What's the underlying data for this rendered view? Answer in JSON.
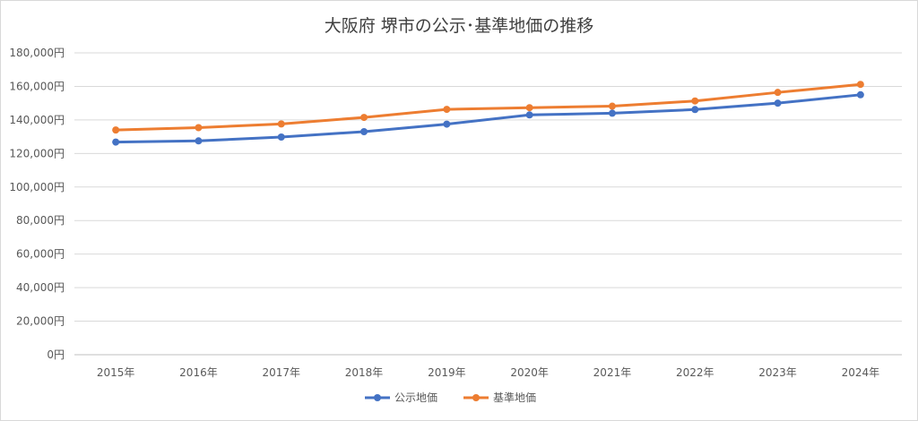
{
  "chart_data": {
    "type": "line",
    "title": "大阪府 堺市の公示･基準地価の推移",
    "categories": [
      "2015年",
      "2016年",
      "2017年",
      "2018年",
      "2019年",
      "2020年",
      "2021年",
      "2022年",
      "2023年",
      "2024年"
    ],
    "series": [
      {
        "name": "公示地価",
        "color": "#4472c4",
        "values": [
          126800,
          127500,
          129800,
          133000,
          137500,
          143000,
          144000,
          146200,
          150000,
          155000
        ]
      },
      {
        "name": "基準地価",
        "color": "#ed7d31",
        "values": [
          134000,
          135400,
          137600,
          141500,
          146300,
          147300,
          148200,
          151300,
          156400,
          161200
        ]
      }
    ],
    "ylim": [
      0,
      180000
    ],
    "yticks": [
      "0円",
      "20,000円",
      "40,000円",
      "60,000円",
      "80,000円",
      "100,000円",
      "120,000円",
      "140,000円",
      "160,000円",
      "180,000円"
    ],
    "grid": true,
    "legend_position": "bottom"
  }
}
